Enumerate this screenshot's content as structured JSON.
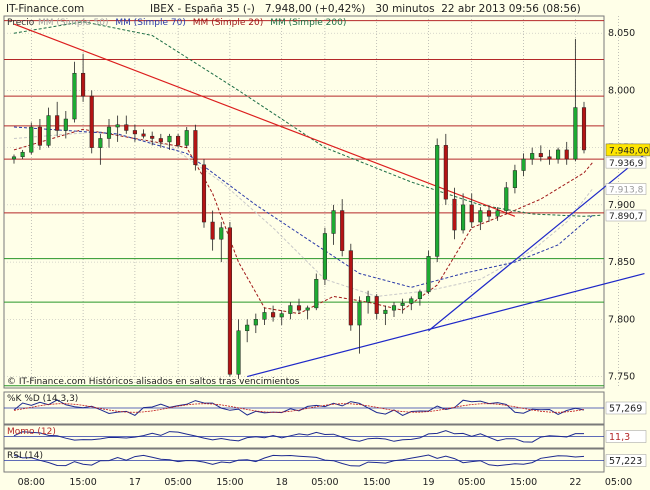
{
  "header": {
    "site": "IT-Finance.com",
    "title": "IBEX - España 35 (-)   7.948,00 (+0,42%)   30 minutos  22 abr 2013 09:56 (08:56)"
  },
  "legend": {
    "precio": "Precio",
    "items": [
      {
        "label": "MM (Simple 50)",
        "color": "#c8c8c8"
      },
      {
        "label": "MM (Simple 70)",
        "color": "#2a3aa8"
      },
      {
        "label": "MM (Simple 20)",
        "color": "#a01818"
      },
      {
        "label": "MM (Simple 200)",
        "color": "#1e6e46"
      }
    ]
  },
  "footer_note": "© IT-Finance.com  Históricos alisados en saltos tras vencimientos",
  "colors": {
    "up_candle": "#1eaa32",
    "down_candle": "#b41414",
    "grid_red": "#b42828",
    "grid_green": "#289628",
    "trend_red": "#dc1e1e",
    "trend_blue": "#1e28c8",
    "panel_bg": "#ffffe8"
  },
  "chart_data": {
    "type": "candlestick",
    "ylim": [
      7740,
      8065
    ],
    "y_ticks": [
      {
        "v": 8050,
        "label": "8.050"
      },
      {
        "v": 8000,
        "label": "8.000"
      },
      {
        "v": 7950,
        "label": "7.950"
      },
      {
        "v": 7900,
        "label": "7.900"
      },
      {
        "v": 7850,
        "label": "7.850"
      },
      {
        "v": 7800,
        "label": "7.800"
      },
      {
        "v": 7750,
        "label": "7.750"
      }
    ],
    "x_ticks": [
      {
        "i": 2,
        "label": "08:00"
      },
      {
        "i": 8,
        "label": "15:00"
      },
      {
        "i": 14,
        "label": "17"
      },
      {
        "i": 19,
        "label": "05:00"
      },
      {
        "i": 25,
        "label": "15:00"
      },
      {
        "i": 31,
        "label": "18"
      },
      {
        "i": 36,
        "label": "05:00"
      },
      {
        "i": 42,
        "label": "15:00"
      },
      {
        "i": 48,
        "label": "19"
      },
      {
        "i": 53,
        "label": "05:00"
      },
      {
        "i": 59,
        "label": "15:00"
      },
      {
        "i": 65,
        "label": "22"
      },
      {
        "i": 70,
        "label": "05:00"
      }
    ],
    "horizontal_levels": [
      {
        "v": 8061,
        "color": "red"
      },
      {
        "v": 8027,
        "color": "red"
      },
      {
        "v": 7995,
        "color": "red"
      },
      {
        "v": 7969,
        "color": "red"
      },
      {
        "v": 7940,
        "color": "red"
      },
      {
        "v": 7893,
        "color": "red"
      },
      {
        "v": 7853,
        "color": "green"
      },
      {
        "v": 7815,
        "color": "green"
      },
      {
        "v": 7742,
        "color": "green"
      }
    ],
    "price_labels": [
      {
        "v": 7948.0,
        "label": "7.948,00",
        "style": "last"
      },
      {
        "v": 7936.9,
        "label": "7.936,9",
        "style": "ma"
      },
      {
        "v": 7913.8,
        "label": "7.913,8",
        "style": "ma-light"
      },
      {
        "v": 7890.7,
        "label": "7.890,7",
        "style": "ma"
      }
    ],
    "candles": [
      [
        7940,
        7944,
        7936,
        7942
      ],
      [
        7942,
        7948,
        7940,
        7946
      ],
      [
        7946,
        7972,
        7944,
        7968
      ],
      [
        7968,
        7975,
        7948,
        7952
      ],
      [
        7952,
        7985,
        7950,
        7978
      ],
      [
        7978,
        7990,
        7960,
        7965
      ],
      [
        7965,
        7982,
        7958,
        7975
      ],
      [
        7975,
        8025,
        7972,
        8015
      ],
      [
        8015,
        8032,
        7990,
        7995
      ],
      [
        7995,
        8000,
        7945,
        7950
      ],
      [
        7950,
        7962,
        7935,
        7958
      ],
      [
        7958,
        7975,
        7950,
        7968
      ],
      [
        7968,
        7978,
        7955,
        7970
      ],
      [
        7970,
        7978,
        7962,
        7965
      ],
      [
        7965,
        7970,
        7955,
        7962
      ],
      [
        7962,
        7966,
        7958,
        7960
      ],
      [
        7960,
        7964,
        7952,
        7958
      ],
      [
        7958,
        7962,
        7950,
        7955
      ],
      [
        7955,
        7962,
        7948,
        7960
      ],
      [
        7960,
        7962,
        7950,
        7952
      ],
      [
        7952,
        7968,
        7950,
        7965
      ],
      [
        7965,
        7970,
        7930,
        7935
      ],
      [
        7935,
        7940,
        7880,
        7885
      ],
      [
        7885,
        7895,
        7860,
        7870
      ],
      [
        7870,
        7885,
        7850,
        7880
      ],
      [
        7880,
        7885,
        7750,
        7752
      ],
      [
        7752,
        7800,
        7748,
        7790
      ],
      [
        7790,
        7800,
        7780,
        7795
      ],
      [
        7795,
        7805,
        7788,
        7800
      ],
      [
        7800,
        7810,
        7795,
        7806
      ],
      [
        7806,
        7812,
        7798,
        7802
      ],
      [
        7802,
        7808,
        7795,
        7805
      ],
      [
        7805,
        7815,
        7800,
        7812
      ],
      [
        7812,
        7818,
        7805,
        7808
      ],
      [
        7808,
        7812,
        7800,
        7810
      ],
      [
        7810,
        7840,
        7808,
        7835
      ],
      [
        7835,
        7880,
        7830,
        7875
      ],
      [
        7875,
        7900,
        7865,
        7895
      ],
      [
        7895,
        7905,
        7855,
        7860
      ],
      [
        7860,
        7866,
        7790,
        7795
      ],
      [
        7795,
        7820,
        7770,
        7815
      ],
      [
        7815,
        7825,
        7805,
        7820
      ],
      [
        7820,
        7822,
        7800,
        7805
      ],
      [
        7805,
        7812,
        7795,
        7808
      ],
      [
        7808,
        7815,
        7802,
        7812
      ],
      [
        7812,
        7818,
        7805,
        7814
      ],
      [
        7814,
        7820,
        7808,
        7818
      ],
      [
        7818,
        7826,
        7812,
        7824
      ],
      [
        7824,
        7860,
        7822,
        7855
      ],
      [
        7855,
        7958,
        7850,
        7952
      ],
      [
        7952,
        7962,
        7900,
        7905
      ],
      [
        7905,
        7915,
        7870,
        7878
      ],
      [
        7878,
        7910,
        7875,
        7900
      ],
      [
        7900,
        7910,
        7880,
        7885
      ],
      [
        7885,
        7898,
        7878,
        7895
      ],
      [
        7895,
        7900,
        7885,
        7890
      ],
      [
        7890,
        7898,
        7886,
        7895
      ],
      [
        7895,
        7920,
        7892,
        7915
      ],
      [
        7915,
        7935,
        7910,
        7930
      ],
      [
        7930,
        7945,
        7925,
        7940
      ],
      [
        7940,
        7950,
        7935,
        7945
      ],
      [
        7945,
        7952,
        7938,
        7942
      ],
      [
        7942,
        7948,
        7935,
        7940
      ],
      [
        7940,
        7950,
        7936,
        7948
      ],
      [
        7948,
        7955,
        7935,
        7940
      ],
      [
        7940,
        8045,
        7938,
        7985
      ],
      [
        7985,
        7990,
        7945,
        7948
      ]
    ],
    "ma_series": [
      {
        "name": "MM (Simple 20)",
        "color": "#a01818",
        "dash": "3,2",
        "points": [
          [
            0,
            7948
          ],
          [
            8,
            7966
          ],
          [
            14,
            7958
          ],
          [
            20,
            7950
          ],
          [
            23,
            7910
          ],
          [
            26,
            7850
          ],
          [
            29,
            7810
          ],
          [
            33,
            7805
          ],
          [
            37,
            7820
          ],
          [
            41,
            7815
          ],
          [
            45,
            7808
          ],
          [
            49,
            7830
          ],
          [
            53,
            7880
          ],
          [
            57,
            7892
          ],
          [
            61,
            7905
          ],
          [
            66,
            7928
          ],
          [
            67,
            7937
          ]
        ]
      },
      {
        "name": "MM (Simple 50)",
        "color": "#c8c8c8",
        "dash": "3,2",
        "points": [
          [
            0,
            7958
          ],
          [
            10,
            7964
          ],
          [
            18,
            7952
          ],
          [
            24,
            7920
          ],
          [
            30,
            7880
          ],
          [
            36,
            7835
          ],
          [
            42,
            7820
          ],
          [
            48,
            7825
          ],
          [
            54,
            7835
          ],
          [
            60,
            7860
          ],
          [
            64,
            7885
          ],
          [
            67,
            7914
          ]
        ]
      },
      {
        "name": "MM (Simple 70)",
        "color": "#2a3aa8",
        "dash": "3,2",
        "points": [
          [
            0,
            7968
          ],
          [
            12,
            7962
          ],
          [
            20,
            7945
          ],
          [
            28,
            7900
          ],
          [
            34,
            7870
          ],
          [
            40,
            7840
          ],
          [
            46,
            7828
          ],
          [
            52,
            7840
          ],
          [
            58,
            7850
          ],
          [
            63,
            7865
          ],
          [
            67,
            7891
          ]
        ]
      },
      {
        "name": "MM (Simple 200)",
        "color": "#1e6e46",
        "dash": "3,2",
        "points": [
          [
            0,
            8050
          ],
          [
            8,
            8060
          ],
          [
            16,
            8048
          ],
          [
            26,
            8000
          ],
          [
            36,
            7950
          ],
          [
            46,
            7920
          ],
          [
            54,
            7900
          ],
          [
            60,
            7892
          ],
          [
            66,
            7890
          ],
          [
            68,
            7891
          ]
        ]
      }
    ],
    "trendlines": [
      {
        "color": "red",
        "from": [
          0,
          8058
        ],
        "to": [
          58,
          7890
        ]
      },
      {
        "color": "blue",
        "from": [
          27,
          7750
        ],
        "to": [
          73,
          7840
        ]
      },
      {
        "color": "blue",
        "from": [
          48,
          7790
        ],
        "to": [
          73,
          7944
        ]
      }
    ],
    "indicators": [
      {
        "name": "%K",
        "label": "%K %D (14,3,3)",
        "value_label": "57,269",
        "ylim": [
          0,
          100
        ]
      },
      {
        "name": "Momo",
        "label": "Momo (12)",
        "value_label": "11,3",
        "ylim": [
          -60,
          60
        ]
      },
      {
        "name": "RSI",
        "label": "RSI (14)",
        "value_label": "57,223",
        "ylim": [
          0,
          100
        ]
      }
    ]
  }
}
